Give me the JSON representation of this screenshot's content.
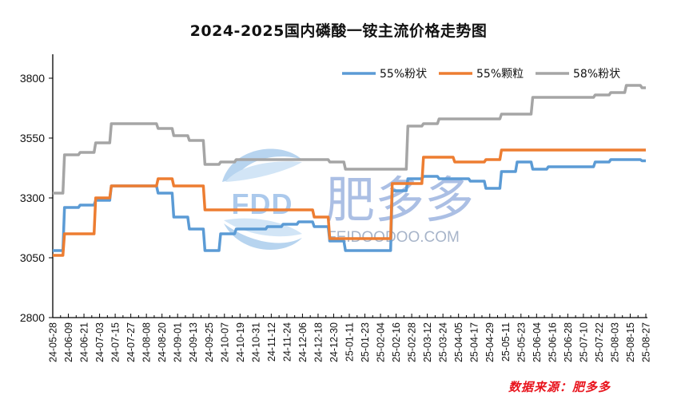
{
  "title": "2024-2025国内磷酸一铵主流价格走势图",
  "source": "数据来源：肥多多",
  "watermark": {
    "logo": "FDD",
    "brand": "肥多多",
    "url": "FEIDOODOO.COM"
  },
  "colors": {
    "s1": "#5b9bd5",
    "s2": "#ed7d31",
    "s3": "#a5a5a5",
    "source": "#e8141d",
    "watermark": "#8faadc"
  },
  "chart_data": {
    "type": "line",
    "title": "2024-2025国内磷酸一铵主流价格走势图",
    "xlabel": "",
    "ylabel": "",
    "ylim": [
      2800,
      3900
    ],
    "yticks": [
      2800,
      3050,
      3300,
      3550,
      3800
    ],
    "grid": false,
    "legend_position": "top-right",
    "categories": [
      "24-05-28",
      "24-06-09",
      "24-06-21",
      "24-07-03",
      "24-07-15",
      "24-07-27",
      "24-08-08",
      "24-08-20",
      "24-09-01",
      "24-09-13",
      "24-09-25",
      "24-10-07",
      "24-10-19",
      "24-10-31",
      "24-11-12",
      "24-11-24",
      "24-12-06",
      "24-12-18",
      "24-12-30",
      "25-01-11",
      "25-01-23",
      "25-02-04",
      "25-02-16",
      "25-02-28",
      "25-03-12",
      "25-03-24",
      "25-04-05",
      "25-04-17",
      "25-04-29",
      "25-05-11",
      "25-05-23",
      "25-06-04",
      "25-06-16",
      "25-06-28",
      "25-07-10",
      "25-07-22",
      "25-08-03",
      "25-08-15",
      "25-08-27"
    ],
    "series": [
      {
        "name": "55%粉状",
        "color": "#5b9bd5",
        "values": [
          3080,
          3260,
          3270,
          3290,
          3350,
          3350,
          3350,
          3320,
          3220,
          3170,
          3080,
          3150,
          3170,
          3170,
          3180,
          3190,
          3200,
          3180,
          3120,
          3080,
          3080,
          3080,
          3330,
          3380,
          3390,
          3380,
          3380,
          3370,
          3340,
          3410,
          3450,
          3420,
          3430,
          3430,
          3430,
          3450,
          3460,
          3460,
          3455
        ]
      },
      {
        "name": "55%颗粒",
        "color": "#ed7d31",
        "values": [
          3060,
          3150,
          3150,
          3300,
          3350,
          3350,
          3350,
          3380,
          3350,
          3350,
          3250,
          3250,
          3250,
          3250,
          3250,
          3250,
          3250,
          3220,
          3130,
          3130,
          3130,
          3130,
          3360,
          3360,
          3470,
          3470,
          3450,
          3450,
          3460,
          3500,
          3500,
          3500,
          3500,
          3500,
          3500,
          3500,
          3500,
          3500,
          3500
        ]
      },
      {
        "name": "58%粉状",
        "color": "#a5a5a5",
        "values": [
          3320,
          3480,
          3490,
          3530,
          3610,
          3610,
          3610,
          3590,
          3560,
          3540,
          3440,
          3450,
          3460,
          3460,
          3460,
          3460,
          3460,
          3460,
          3450,
          3420,
          3420,
          3420,
          3420,
          3600,
          3610,
          3630,
          3630,
          3630,
          3630,
          3650,
          3650,
          3720,
          3720,
          3720,
          3720,
          3730,
          3740,
          3770,
          3760
        ]
      }
    ]
  }
}
